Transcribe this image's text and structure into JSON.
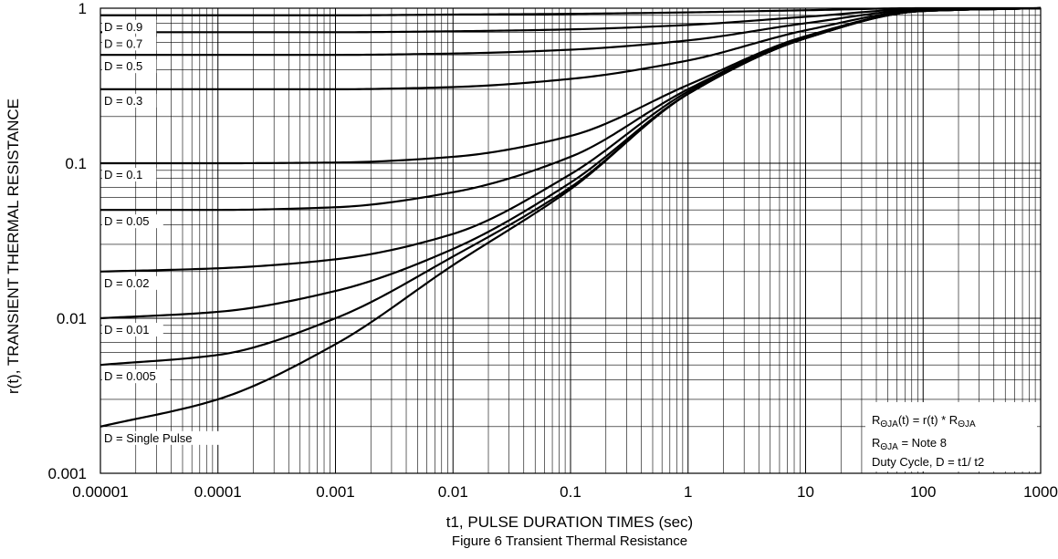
{
  "chart_data": {
    "type": "line",
    "caption": "Figure 6 Transient Thermal Resistance",
    "xlabel": "t1, PULSE DURATION TIMES (sec)",
    "ylabel": "r(t), TRANSIENT THERMAL RESISTANCE",
    "x_scale": "log",
    "y_scale": "log",
    "xlim": [
      1e-05,
      1000
    ],
    "ylim": [
      0.001,
      1
    ],
    "grid": true,
    "x_ticks": [
      "0.00001",
      "0.0001",
      "0.001",
      "0.01",
      "0.1",
      "1",
      "10",
      "100",
      "1000"
    ],
    "y_ticks": [
      "0.001",
      "0.01",
      "0.1",
      "1"
    ],
    "x": [
      1e-05,
      0.0001,
      0.001,
      0.01,
      0.1,
      1,
      10,
      100,
      1000
    ],
    "series": [
      {
        "name": "D = 0.9",
        "values": [
          0.9,
          0.9,
          0.9,
          0.91,
          0.92,
          0.94,
          0.97,
          1.0,
          1.0
        ]
      },
      {
        "name": "D = 0.7",
        "values": [
          0.7,
          0.7,
          0.7,
          0.71,
          0.73,
          0.78,
          0.88,
          0.99,
          1.0
        ]
      },
      {
        "name": "D = 0.5",
        "values": [
          0.5,
          0.5,
          0.5,
          0.51,
          0.54,
          0.62,
          0.8,
          0.98,
          1.0
        ]
      },
      {
        "name": "D = 0.3",
        "values": [
          0.3,
          0.3,
          0.3,
          0.31,
          0.35,
          0.46,
          0.72,
          0.97,
          1.0
        ]
      },
      {
        "name": "D = 0.1",
        "values": [
          0.1,
          0.1,
          0.101,
          0.11,
          0.15,
          0.32,
          0.66,
          0.96,
          1.0
        ]
      },
      {
        "name": "D = 0.05",
        "values": [
          0.05,
          0.05,
          0.052,
          0.065,
          0.11,
          0.3,
          0.65,
          0.96,
          1.0
        ]
      },
      {
        "name": "D = 0.02",
        "values": [
          0.02,
          0.021,
          0.024,
          0.035,
          0.085,
          0.29,
          0.64,
          0.96,
          1.0
        ]
      },
      {
        "name": "D = 0.01",
        "values": [
          0.01,
          0.011,
          0.015,
          0.028,
          0.075,
          0.28,
          0.64,
          0.96,
          1.0
        ]
      },
      {
        "name": "D = 0.005",
        "values": [
          0.005,
          0.0058,
          0.01,
          0.025,
          0.07,
          0.28,
          0.64,
          0.96,
          1.0
        ]
      },
      {
        "name": "D = Single Pulse",
        "values": [
          0.002,
          0.003,
          0.0068,
          0.022,
          0.068,
          0.28,
          0.64,
          0.96,
          1.0
        ]
      }
    ],
    "legend": "inline-left"
  },
  "notes": {
    "line1": {
      "r": "R",
      "sub1": "ΘJA",
      "mid": "(t) = r(t) * R",
      "sub2": "ΘJA"
    },
    "line2": {
      "r": "R",
      "sub": "ΘJA",
      "rest": " = Note 8"
    },
    "line3": "Duty Cycle, D = t1/ t2"
  }
}
